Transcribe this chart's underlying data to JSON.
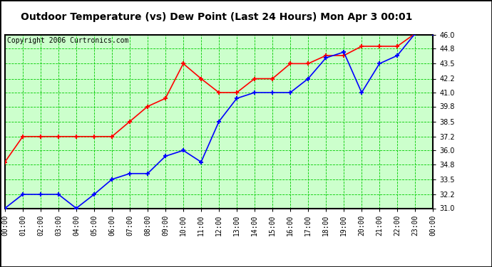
{
  "title": "Outdoor Temperature (vs) Dew Point (Last 24 Hours) Mon Apr 3 00:01",
  "copyright": "Copyright 2006 Curtronics.com",
  "x_labels": [
    "00:00",
    "01:00",
    "02:00",
    "03:00",
    "04:00",
    "05:00",
    "06:00",
    "07:00",
    "08:00",
    "09:00",
    "10:00",
    "11:00",
    "12:00",
    "13:00",
    "14:00",
    "15:00",
    "16:00",
    "17:00",
    "18:00",
    "19:00",
    "20:00",
    "21:00",
    "22:00",
    "23:00",
    "00:00"
  ],
  "temp_red": [
    35.0,
    37.2,
    37.2,
    37.2,
    37.2,
    37.2,
    37.2,
    38.5,
    39.8,
    40.5,
    43.5,
    42.2,
    41.0,
    41.0,
    42.2,
    42.2,
    43.5,
    43.5,
    44.2,
    44.2,
    45.0,
    45.0,
    45.0,
    46.1,
    46.1
  ],
  "temp_blue": [
    31.0,
    32.2,
    32.2,
    32.2,
    31.0,
    32.2,
    33.5,
    34.0,
    34.0,
    35.5,
    36.0,
    35.0,
    38.5,
    40.5,
    41.0,
    41.0,
    41.0,
    42.2,
    44.0,
    44.5,
    41.0,
    43.5,
    44.2,
    46.1,
    46.1
  ],
  "yticks": [
    31.0,
    32.2,
    33.5,
    34.8,
    36.0,
    37.2,
    38.5,
    39.8,
    41.0,
    42.2,
    43.5,
    44.8,
    46.0
  ],
  "ymin": 31.0,
  "ymax": 46.0,
  "bg_color": "#ffffff",
  "plot_bg_color": "#ccffcc",
  "grid_color": "#00cc00",
  "red_color": "#ff0000",
  "blue_color": "#0000ff",
  "border_color": "#000000",
  "title_fontsize": 10,
  "copyright_fontsize": 7,
  "tick_fontsize": 7
}
